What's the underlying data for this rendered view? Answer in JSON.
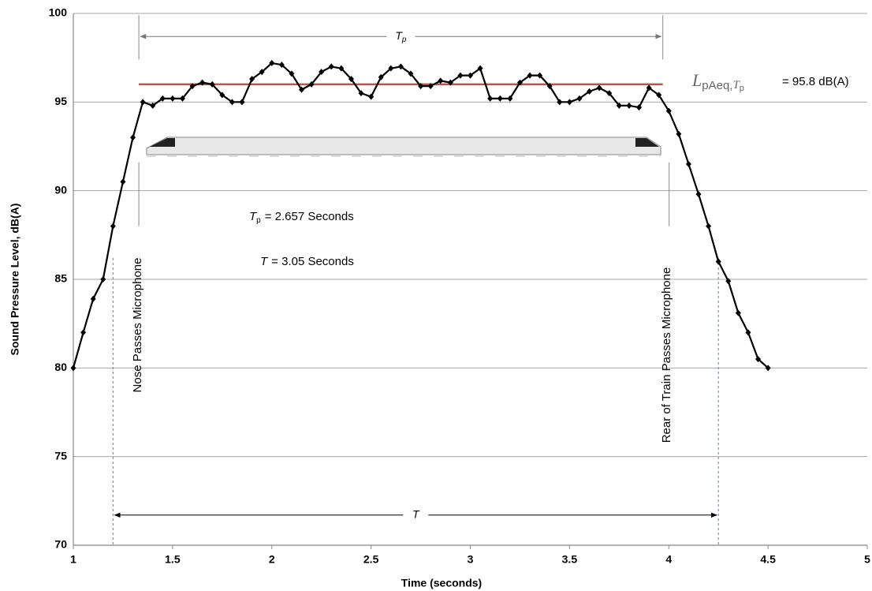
{
  "chart_data": {
    "type": "line",
    "x_title": "Time (seconds)",
    "y_title": "Sound Pressure Level, dB(A)",
    "x": [
      1,
      1.05,
      1.1,
      1.15,
      1.2,
      1.25,
      1.3,
      1.35,
      1.4,
      1.45,
      1.5,
      1.55,
      1.6,
      1.65,
      1.7,
      1.75,
      1.8,
      1.85,
      1.9,
      1.95,
      2,
      2.05,
      2.1,
      2.15,
      2.2,
      2.25,
      2.3,
      2.35,
      2.4,
      2.45,
      2.5,
      2.55,
      2.6,
      2.65,
      2.7,
      2.75,
      2.8,
      2.85,
      2.9,
      2.95,
      3,
      3.05,
      3.1,
      3.15,
      3.2,
      3.25,
      3.3,
      3.35,
      3.4,
      3.45,
      3.5,
      3.55,
      3.6,
      3.65,
      3.7,
      3.75,
      3.8,
      3.85,
      3.9,
      3.95,
      4,
      4.05,
      4.1,
      4.15,
      4.2,
      4.25,
      4.3,
      4.35,
      4.4,
      4.45,
      4.5
    ],
    "values": [
      80,
      82,
      83.9,
      85,
      88,
      90.5,
      93,
      95,
      94.8,
      95.2,
      95.2,
      95.2,
      95.9,
      96.1,
      96,
      95.4,
      95,
      95,
      96.3,
      96.7,
      97.2,
      97.1,
      96.6,
      95.7,
      96,
      96.7,
      97,
      96.9,
      96.3,
      95.5,
      95.3,
      96.4,
      96.9,
      97,
      96.6,
      95.9,
      95.9,
      96.2,
      96.1,
      96.5,
      96.5,
      96.9,
      95.2,
      95.2,
      95.2,
      96.1,
      96.5,
      96.5,
      95.9,
      95,
      95,
      95.2,
      95.6,
      95.8,
      95.5,
      94.8,
      94.8,
      94.7,
      95.8,
      95.4,
      94.5,
      93.2,
      91.5,
      89.8,
      88,
      86,
      84.9,
      83.1,
      82,
      80.5,
      80
    ],
    "color": "#000000",
    "xlim": [
      1,
      5
    ],
    "xticks": [
      1,
      1.5,
      2,
      2.5,
      3,
      3.5,
      4,
      4.5,
      5
    ],
    "ylim": [
      70,
      100
    ],
    "yticks": [
      70,
      75,
      80,
      85,
      90,
      95,
      100
    ],
    "grid": true,
    "leq_line": {
      "y": 96,
      "x": [
        1.33,
        3.97
      ],
      "color": "#c0504d",
      "symbol": "L",
      "sub": "pAeq,",
      "sub_italic": "T",
      "sub2": "p",
      "text": "= 95.8 dB(A)"
    },
    "tp_arrow": {
      "x": [
        1.33,
        3.97
      ],
      "y": 98.7,
      "label": "T",
      "label_sub": "p"
    },
    "t_arrow": {
      "x": [
        1.2,
        4.25
      ],
      "y": 71.7,
      "label": "T"
    },
    "tp_text": {
      "symbol": "T",
      "sub": "p",
      "text": "= 2.657 Seconds"
    },
    "t_text": {
      "symbol": "T",
      "text": "= 3.05 Seconds"
    },
    "nose_label": "Nose Passes Microphone",
    "rear_label": "Rear of Train Passes Microphone"
  }
}
